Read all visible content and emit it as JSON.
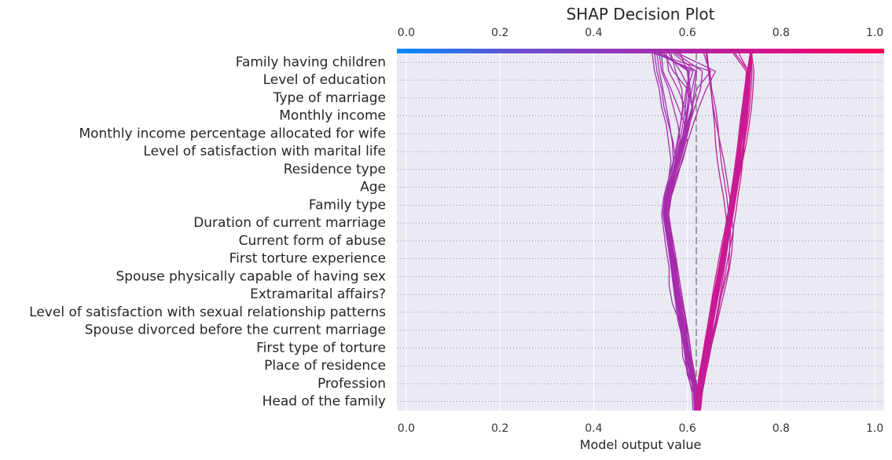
{
  "chart_data": {
    "type": "line",
    "title": "SHAP Decision Plot",
    "xlabel": "Model output value",
    "ylabel": "",
    "xlim": [
      -0.02,
      1.02
    ],
    "xticks": [
      "0.0",
      "0.2",
      "0.4",
      "0.6",
      "0.8",
      "1.0"
    ],
    "xtick_values": [
      0.0,
      0.2,
      0.4,
      0.6,
      0.8,
      1.0
    ],
    "base_value": 0.62,
    "grid": true,
    "background": "#eaeaf2",
    "colormap": [
      "#008bfb",
      "#6a4fd3",
      "#9b32b3",
      "#d0158f",
      "#ff0052"
    ],
    "features": [
      "Family having children",
      "Level of education",
      "Type of marriage",
      "Monthly income",
      "Monthly income percentage allocated for wife",
      "Level of satisfaction with marital life",
      "Residence type",
      "Age",
      "Family type",
      "Duration of current marriage",
      "Current form of abuse",
      "First torture experience",
      "Spouse physically capable of having sex",
      "Extramarital affairs?",
      "Level of satisfaction with sexual relationship patterns",
      "Spouse divorced before the current marriage",
      "First type of torture",
      "Place of residence",
      "Profession",
      "Head of the family"
    ],
    "series": [
      {
        "values": [
          0.62,
          0.618,
          0.603,
          0.59,
          0.588,
          0.583,
          0.568,
          0.561,
          0.561,
          0.555,
          0.55,
          0.545,
          0.55,
          0.56,
          0.565,
          0.56,
          0.555,
          0.545,
          0.54,
          0.53,
          0.525
        ]
      },
      {
        "values": [
          0.625,
          0.62,
          0.61,
          0.6,
          0.598,
          0.59,
          0.578,
          0.575,
          0.57,
          0.563,
          0.557,
          0.55,
          0.557,
          0.57,
          0.575,
          0.57,
          0.56,
          0.55,
          0.545,
          0.535,
          0.53
        ]
      },
      {
        "values": [
          0.615,
          0.613,
          0.6,
          0.595,
          0.59,
          0.58,
          0.575,
          0.57,
          0.565,
          0.56,
          0.555,
          0.55,
          0.553,
          0.56,
          0.57,
          0.568,
          0.562,
          0.555,
          0.548,
          0.54,
          0.535
        ]
      },
      {
        "values": [
          0.62,
          0.615,
          0.605,
          0.598,
          0.595,
          0.588,
          0.582,
          0.58,
          0.575,
          0.568,
          0.562,
          0.556,
          0.56,
          0.57,
          0.58,
          0.585,
          0.58,
          0.57,
          0.56,
          0.545,
          0.54
        ]
      },
      {
        "values": [
          0.618,
          0.615,
          0.608,
          0.603,
          0.6,
          0.595,
          0.59,
          0.585,
          0.578,
          0.57,
          0.565,
          0.56,
          0.565,
          0.575,
          0.59,
          0.6,
          0.595,
          0.58,
          0.565,
          0.548,
          0.545
        ]
      },
      {
        "values": [
          0.622,
          0.62,
          0.612,
          0.605,
          0.598,
          0.59,
          0.585,
          0.578,
          0.572,
          0.566,
          0.56,
          0.555,
          0.56,
          0.572,
          0.58,
          0.59,
          0.6,
          0.61,
          0.6,
          0.57,
          0.55
        ]
      },
      {
        "values": [
          0.612,
          0.61,
          0.602,
          0.596,
          0.59,
          0.585,
          0.578,
          0.572,
          0.568,
          0.562,
          0.558,
          0.552,
          0.556,
          0.568,
          0.576,
          0.585,
          0.598,
          0.595,
          0.58,
          0.56,
          0.555
        ]
      },
      {
        "values": [
          0.625,
          0.622,
          0.615,
          0.608,
          0.603,
          0.596,
          0.588,
          0.582,
          0.576,
          0.57,
          0.563,
          0.558,
          0.563,
          0.575,
          0.585,
          0.596,
          0.605,
          0.612,
          0.605,
          0.585,
          0.56
        ]
      },
      {
        "values": [
          0.616,
          0.614,
          0.606,
          0.6,
          0.594,
          0.587,
          0.58,
          0.574,
          0.569,
          0.563,
          0.557,
          0.551,
          0.555,
          0.566,
          0.574,
          0.58,
          0.585,
          0.59,
          0.588,
          0.575,
          0.565
        ]
      },
      {
        "values": [
          0.623,
          0.619,
          0.611,
          0.604,
          0.597,
          0.589,
          0.581,
          0.576,
          0.571,
          0.565,
          0.559,
          0.553,
          0.558,
          0.569,
          0.578,
          0.588,
          0.596,
          0.602,
          0.61,
          0.618,
          0.57
        ]
      },
      {
        "values": [
          0.619,
          0.617,
          0.609,
          0.602,
          0.596,
          0.588,
          0.582,
          0.577,
          0.571,
          0.566,
          0.56,
          0.554,
          0.559,
          0.571,
          0.583,
          0.594,
          0.604,
          0.616,
          0.628,
          0.632,
          0.575
        ]
      },
      {
        "values": [
          0.621,
          0.618,
          0.61,
          0.601,
          0.595,
          0.586,
          0.579,
          0.573,
          0.568,
          0.561,
          0.556,
          0.549,
          0.554,
          0.565,
          0.575,
          0.586,
          0.598,
          0.61,
          0.62,
          0.65,
          0.528
        ]
      },
      {
        "values": [
          0.624,
          0.621,
          0.613,
          0.606,
          0.6,
          0.593,
          0.586,
          0.58,
          0.574,
          0.568,
          0.562,
          0.556,
          0.561,
          0.573,
          0.581,
          0.592,
          0.602,
          0.611,
          0.615,
          0.62,
          0.532
        ]
      },
      {
        "values": [
          0.617,
          0.614,
          0.607,
          0.599,
          0.593,
          0.586,
          0.58,
          0.575,
          0.57,
          0.564,
          0.558,
          0.552,
          0.557,
          0.567,
          0.576,
          0.583,
          0.59,
          0.596,
          0.6,
          0.612,
          0.538
        ]
      },
      {
        "values": [
          0.626,
          0.623,
          0.616,
          0.609,
          0.604,
          0.598,
          0.591,
          0.585,
          0.579,
          0.573,
          0.566,
          0.56,
          0.566,
          0.578,
          0.588,
          0.6,
          0.612,
          0.625,
          0.64,
          0.66,
          0.58
        ]
      },
      {
        "values": [
          0.62,
          0.617,
          0.606,
          0.597,
          0.591,
          0.583,
          0.577,
          0.571,
          0.566,
          0.56,
          0.554,
          0.548,
          0.552,
          0.563,
          0.571,
          0.578,
          0.585,
          0.592,
          0.598,
          0.605,
          0.542
        ]
      },
      {
        "values": [
          0.622,
          0.619,
          0.611,
          0.603,
          0.598,
          0.591,
          0.584,
          0.579,
          0.573,
          0.567,
          0.561,
          0.555,
          0.56,
          0.571,
          0.58,
          0.589,
          0.597,
          0.603,
          0.606,
          0.602,
          0.548
        ]
      },
      {
        "values": [
          0.618,
          0.616,
          0.608,
          0.601,
          0.595,
          0.589,
          0.583,
          0.578,
          0.572,
          0.566,
          0.56,
          0.554,
          0.559,
          0.57,
          0.579,
          0.587,
          0.594,
          0.6,
          0.603,
          0.6,
          0.585
        ]
      },
      {
        "values": [
          0.621,
          0.62,
          0.625,
          0.632,
          0.638,
          0.645,
          0.652,
          0.66,
          0.668,
          0.676,
          0.684,
          0.69,
          0.695,
          0.702,
          0.708,
          0.712,
          0.716,
          0.72,
          0.725,
          0.73,
          0.735
        ]
      },
      {
        "values": [
          0.623,
          0.625,
          0.63,
          0.636,
          0.642,
          0.65,
          0.657,
          0.664,
          0.671,
          0.679,
          0.686,
          0.692,
          0.697,
          0.703,
          0.709,
          0.713,
          0.717,
          0.722,
          0.727,
          0.732,
          0.736
        ]
      },
      {
        "values": [
          0.625,
          0.628,
          0.633,
          0.64,
          0.646,
          0.654,
          0.661,
          0.668,
          0.675,
          0.682,
          0.689,
          0.694,
          0.699,
          0.705,
          0.71,
          0.715,
          0.719,
          0.724,
          0.729,
          0.733,
          0.737
        ]
      },
      {
        "values": [
          0.619,
          0.621,
          0.627,
          0.634,
          0.64,
          0.647,
          0.654,
          0.662,
          0.669,
          0.677,
          0.684,
          0.689,
          0.694,
          0.7,
          0.706,
          0.71,
          0.715,
          0.72,
          0.726,
          0.731,
          0.735
        ]
      },
      {
        "values": [
          0.627,
          0.631,
          0.638,
          0.645,
          0.652,
          0.66,
          0.667,
          0.673,
          0.679,
          0.685,
          0.69,
          0.695,
          0.7,
          0.706,
          0.711,
          0.716,
          0.72,
          0.725,
          0.73,
          0.734,
          0.737
        ]
      },
      {
        "values": [
          0.622,
          0.624,
          0.629,
          0.636,
          0.642,
          0.649,
          0.656,
          0.663,
          0.67,
          0.678,
          0.686,
          0.693,
          0.7,
          0.708,
          0.715,
          0.722,
          0.728,
          0.733,
          0.736,
          0.738,
          0.736
        ]
      },
      {
        "values": [
          0.624,
          0.627,
          0.632,
          0.639,
          0.645,
          0.652,
          0.659,
          0.666,
          0.673,
          0.681,
          0.689,
          0.696,
          0.703,
          0.71,
          0.718,
          0.726,
          0.732,
          0.737,
          0.74,
          0.742,
          0.737
        ]
      },
      {
        "values": [
          0.62,
          0.622,
          0.628,
          0.635,
          0.641,
          0.648,
          0.655,
          0.661,
          0.668,
          0.675,
          0.682,
          0.688,
          0.694,
          0.7,
          0.706,
          0.712,
          0.716,
          0.72,
          0.724,
          0.728,
          0.734
        ]
      },
      {
        "values": [
          0.626,
          0.629,
          0.635,
          0.642,
          0.648,
          0.656,
          0.663,
          0.67,
          0.677,
          0.684,
          0.691,
          0.698,
          0.704,
          0.71,
          0.716,
          0.72,
          0.724,
          0.728,
          0.732,
          0.735,
          0.738
        ]
      },
      {
        "values": [
          0.618,
          0.621,
          0.626,
          0.633,
          0.639,
          0.646,
          0.653,
          0.66,
          0.667,
          0.674,
          0.681,
          0.687,
          0.692,
          0.698,
          0.703,
          0.708,
          0.712,
          0.717,
          0.722,
          0.728,
          0.735
        ]
      },
      {
        "values": [
          0.628,
          0.632,
          0.639,
          0.647,
          0.654,
          0.662,
          0.669,
          0.676,
          0.683,
          0.69,
          0.697,
          0.703,
          0.708,
          0.714,
          0.718,
          0.722,
          0.726,
          0.73,
          0.733,
          0.735,
          0.737
        ]
      },
      {
        "values": [
          0.623,
          0.626,
          0.631,
          0.638,
          0.644,
          0.651,
          0.658,
          0.665,
          0.671,
          0.678,
          0.684,
          0.69,
          0.695,
          0.701,
          0.707,
          0.711,
          0.716,
          0.721,
          0.727,
          0.732,
          0.736
        ]
      },
      {
        "values": [
          0.621,
          0.624,
          0.63,
          0.637,
          0.643,
          0.65,
          0.657,
          0.664,
          0.672,
          0.679,
          0.687,
          0.694,
          0.701,
          0.708,
          0.715,
          0.719,
          0.722,
          0.726,
          0.73,
          0.733,
          0.737
        ]
      },
      {
        "values": [
          0.625,
          0.628,
          0.634,
          0.641,
          0.647,
          0.655,
          0.662,
          0.669,
          0.676,
          0.683,
          0.689,
          0.695,
          0.7,
          0.706,
          0.712,
          0.716,
          0.721,
          0.726,
          0.731,
          0.735,
          0.738
        ]
      },
      {
        "values": [
          0.622,
          0.625,
          0.631,
          0.64,
          0.65,
          0.66,
          0.668,
          0.678,
          0.688,
          0.69,
          0.692,
          0.688,
          0.684,
          0.678,
          0.672,
          0.668,
          0.665,
          0.66,
          0.652,
          0.648,
          0.635
        ]
      },
      {
        "values": [
          0.624,
          0.628,
          0.636,
          0.645,
          0.655,
          0.664,
          0.673,
          0.682,
          0.69,
          0.695,
          0.698,
          0.694,
          0.69,
          0.684,
          0.678,
          0.67,
          0.662,
          0.655,
          0.65,
          0.645,
          0.64
        ]
      },
      {
        "values": [
          0.62,
          0.623,
          0.63,
          0.638,
          0.646,
          0.654,
          0.662,
          0.67,
          0.677,
          0.682,
          0.686,
          0.682,
          0.677,
          0.67,
          0.664,
          0.66,
          0.658,
          0.654,
          0.65,
          0.646,
          0.642
        ]
      },
      {
        "values": [
          0.626,
          0.63,
          0.637,
          0.643,
          0.65,
          0.656,
          0.662,
          0.668,
          0.675,
          0.682,
          0.69,
          0.696,
          0.702,
          0.708,
          0.713,
          0.716,
          0.718,
          0.722,
          0.726,
          0.73,
          0.71
        ]
      },
      {
        "values": [
          0.621,
          0.624,
          0.629,
          0.634,
          0.64,
          0.645,
          0.651,
          0.657,
          0.664,
          0.671,
          0.679,
          0.686,
          0.693,
          0.7,
          0.705,
          0.71,
          0.714,
          0.719,
          0.724,
          0.73,
          0.702
        ]
      },
      {
        "values": [
          0.623,
          0.627,
          0.633,
          0.64,
          0.646,
          0.653,
          0.66,
          0.667,
          0.673,
          0.679,
          0.685,
          0.69,
          0.696,
          0.702,
          0.708,
          0.712,
          0.716,
          0.72,
          0.723,
          0.726,
          0.698
        ]
      }
    ]
  }
}
